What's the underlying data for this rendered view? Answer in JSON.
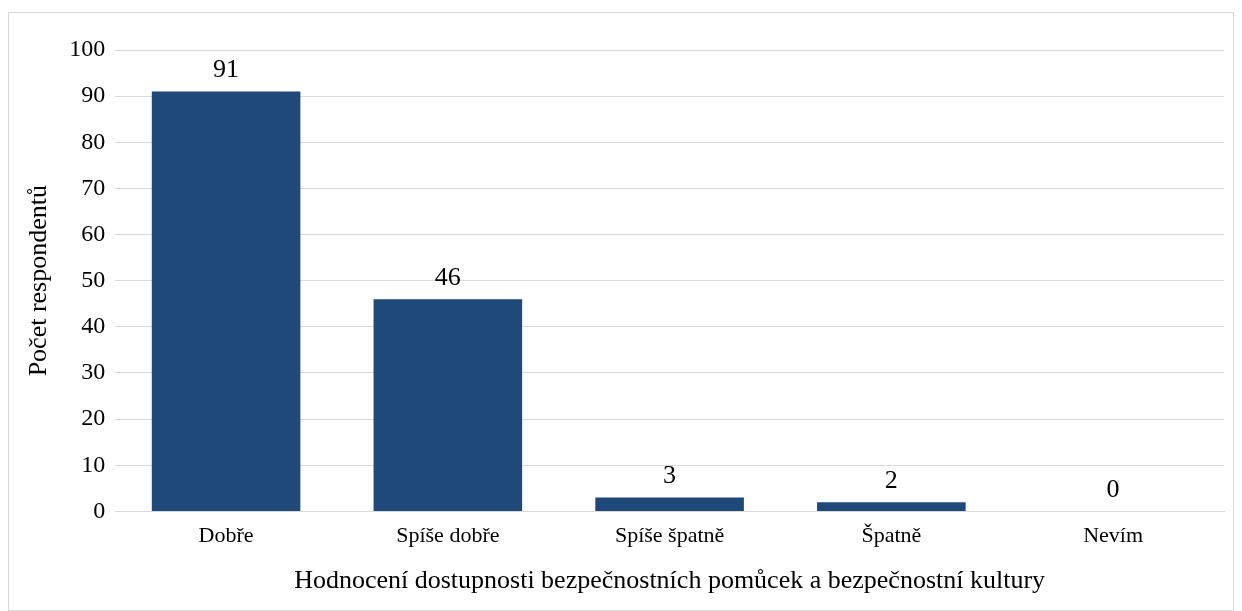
{
  "chart_data": {
    "type": "bar",
    "xlabel": "Hodnocení dostupnosti bezpečnostních pomůcek a bezpečnostní kultury",
    "ylabel": "Počet respondentů",
    "categories": [
      "Dobře",
      "Spíše dobře",
      "Spíše špatně",
      "Špatně",
      "Nevím"
    ],
    "values": [
      91,
      46,
      3,
      2,
      0
    ],
    "color": "#1f4978",
    "ylim": [
      0,
      100
    ],
    "yticks": [
      0,
      10,
      20,
      30,
      40,
      50,
      60,
      70,
      80,
      90,
      100
    ],
    "grid": "y",
    "data_labels": true,
    "legend": false
  }
}
